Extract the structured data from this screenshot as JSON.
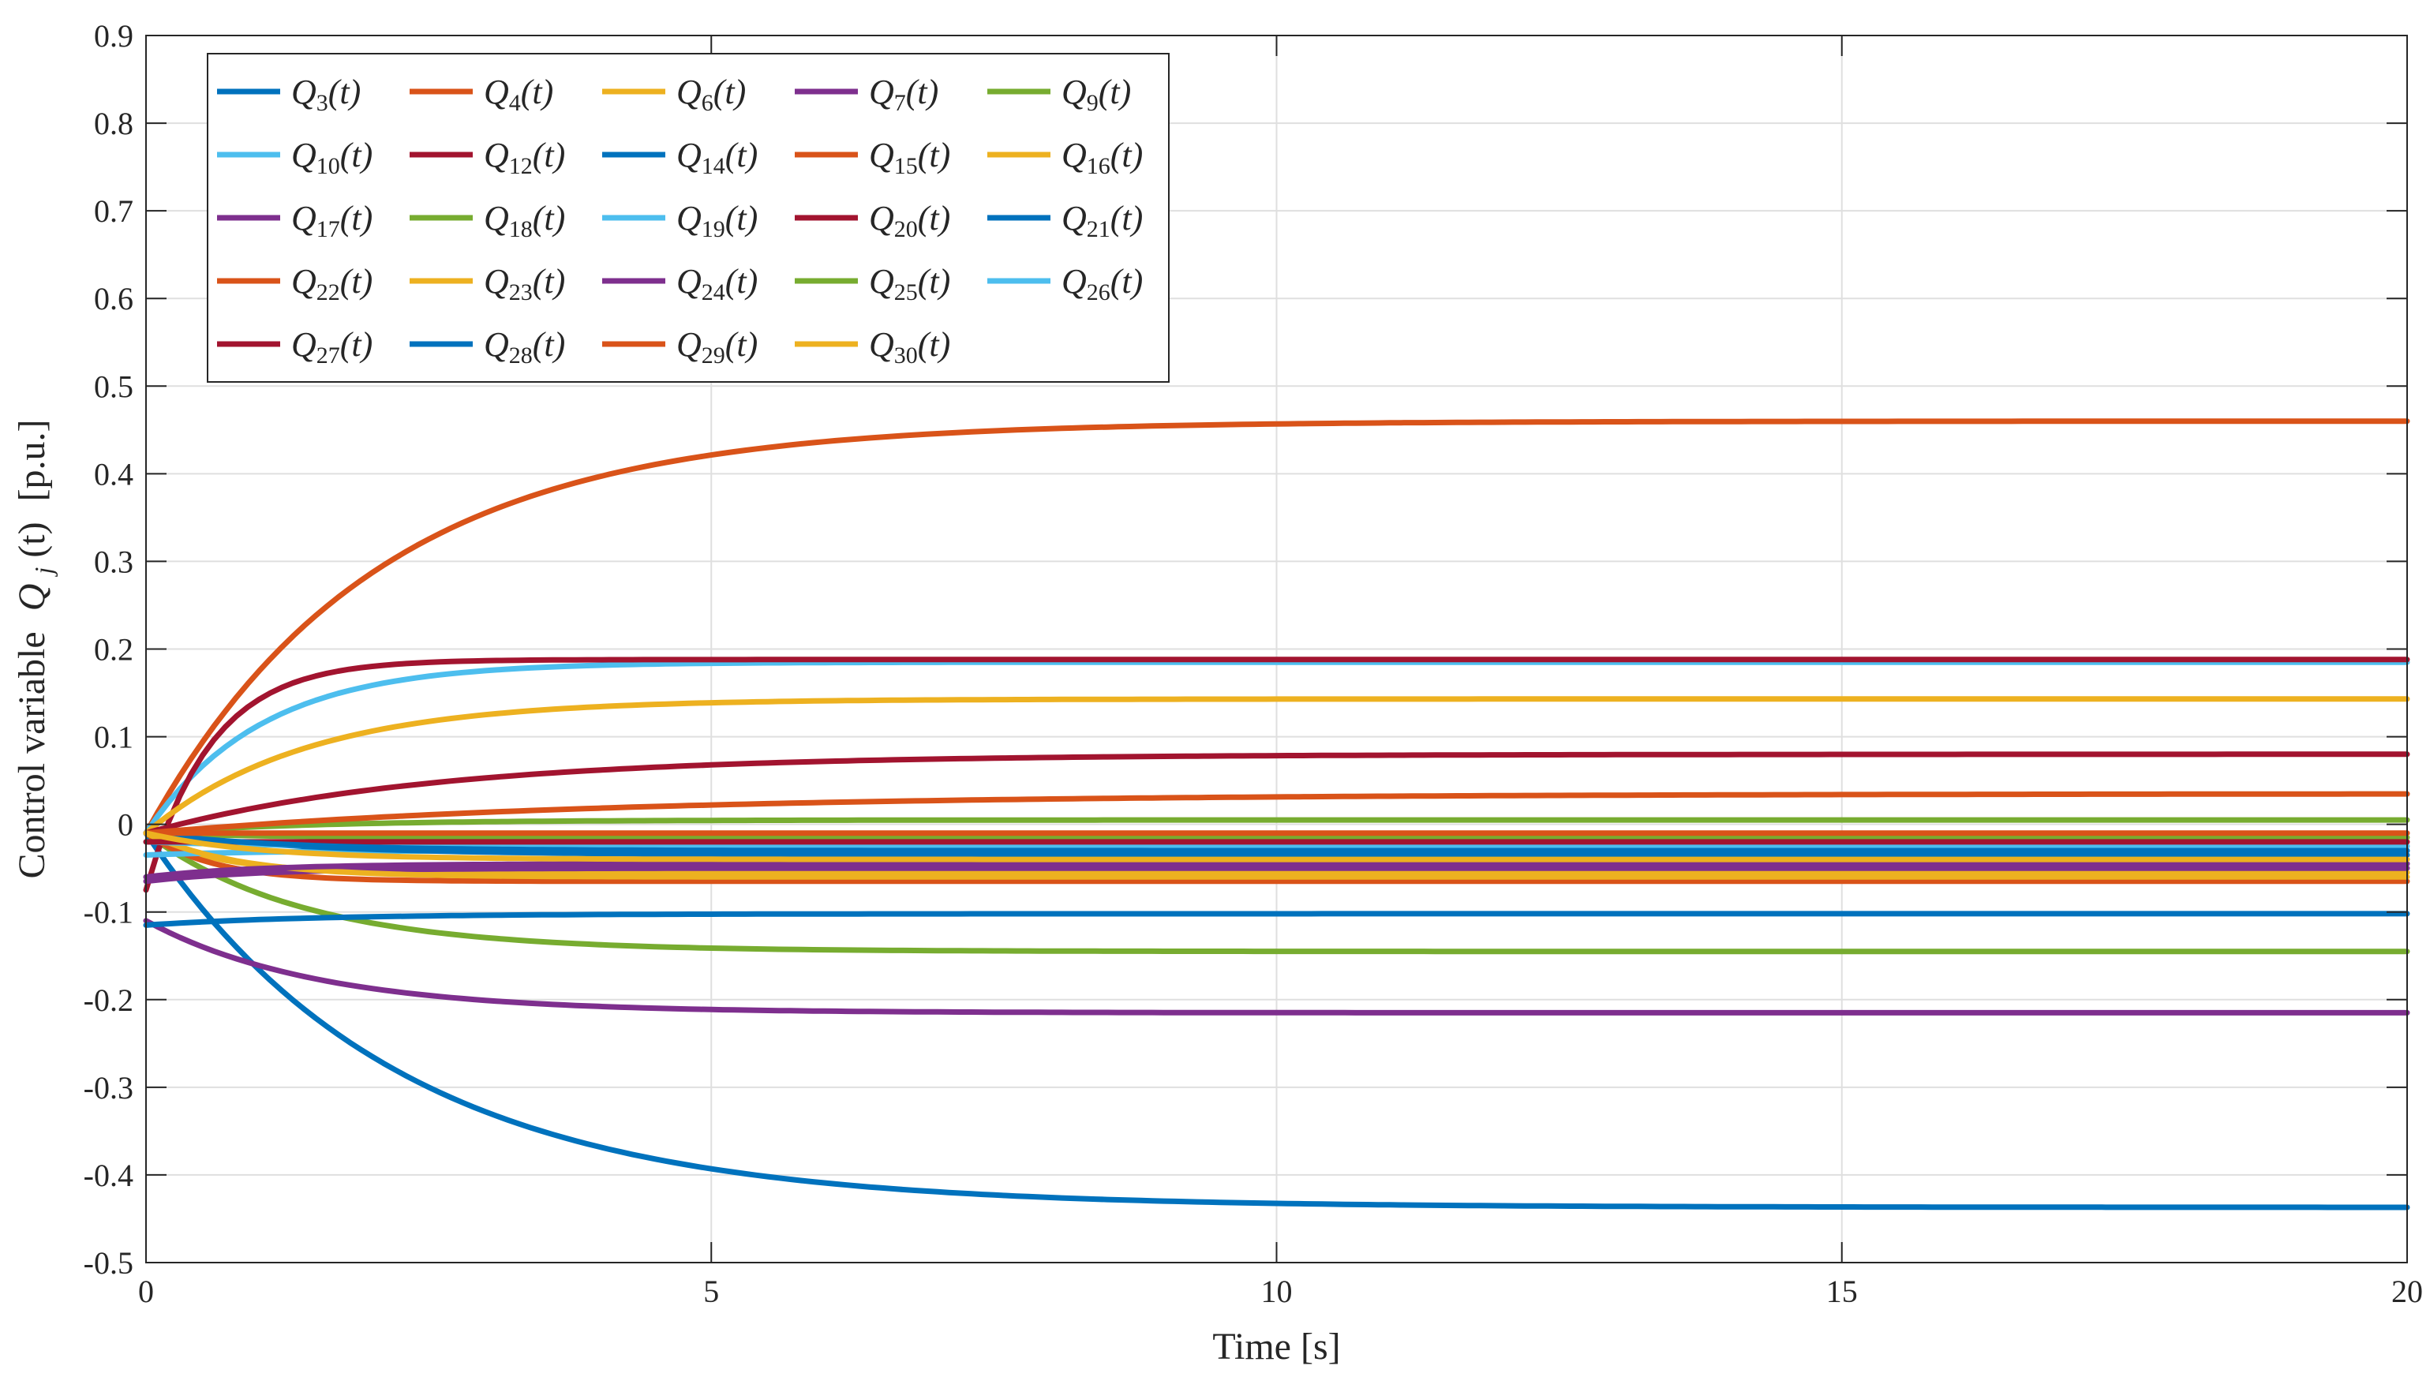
{
  "chart_data": {
    "type": "line",
    "title": "",
    "xlabel": "Time [s]",
    "ylabel_prefix": "Control variable",
    "ylabel_math_symbol": "Q",
    "ylabel_math_subscript": "j",
    "ylabel_math_arg": "(t)",
    "ylabel_unit": "[p.u.]",
    "xlim": [
      0,
      20
    ],
    "ylim": [
      -0.5,
      0.9
    ],
    "xticks": [
      0,
      5,
      10,
      15,
      20
    ],
    "yticks": [
      -0.5,
      -0.4,
      -0.3,
      -0.2,
      -0.1,
      0,
      0.1,
      0.2,
      0.3,
      0.4,
      0.5,
      0.6,
      0.7,
      0.8,
      0.9
    ],
    "xtick_labels": [
      "0",
      "5",
      "10",
      "15",
      "20"
    ],
    "ytick_labels": [
      "-0.5",
      "-0.4",
      "-0.3",
      "-0.2",
      "-0.1",
      "0",
      "0.1",
      "0.2",
      "0.3",
      "0.4",
      "0.5",
      "0.6",
      "0.7",
      "0.8",
      "0.9"
    ],
    "grid": true,
    "legend_position": "top-left",
    "legend_columns": 5,
    "series": [
      {
        "name": "Q_3(t)",
        "symbol": "Q",
        "subscript": "3",
        "arg": "(t)",
        "color": "#0072BD",
        "y0": -0.01,
        "yf": -0.437,
        "tau": 2.2
      },
      {
        "name": "Q_4(t)",
        "symbol": "Q",
        "subscript": "4",
        "arg": "(t)",
        "color": "#D95319",
        "y0": -0.01,
        "yf": 0.46,
        "tau": 2.0
      },
      {
        "name": "Q_6(t)",
        "symbol": "Q",
        "subscript": "6",
        "arg": "(t)",
        "color": "#EDB120",
        "y0": -0.01,
        "yf": -0.055,
        "tau": 0.6
      },
      {
        "name": "Q_7(t)",
        "symbol": "Q",
        "subscript": "7",
        "arg": "(t)",
        "color": "#7E2F8E",
        "y0": -0.11,
        "yf": -0.215,
        "tau": 1.5
      },
      {
        "name": "Q_9(t)",
        "symbol": "Q",
        "subscript": "9",
        "arg": "(t)",
        "color": "#77AC30",
        "y0": -0.01,
        "yf": -0.145,
        "tau": 1.4
      },
      {
        "name": "Q_10(t)",
        "symbol": "Q",
        "subscript": "10",
        "arg": "(t)",
        "color": "#4DBEEE",
        "y0": -0.01,
        "yf": 0.185,
        "tau": 1.0
      },
      {
        "name": "Q_12(t)",
        "symbol": "Q",
        "subscript": "12",
        "arg": "(t)",
        "color": "#A2142F",
        "y0": -0.075,
        "yf": 0.188,
        "tau": 0.6,
        "overshoot": 0.005
      },
      {
        "name": "Q_14(t)",
        "symbol": "Q",
        "subscript": "14",
        "arg": "(t)",
        "color": "#0072BD",
        "y0": -0.115,
        "yf": -0.102,
        "tau": 1.5
      },
      {
        "name": "Q_15(t)",
        "symbol": "Q",
        "subscript": "15",
        "arg": "(t)",
        "color": "#D95319",
        "y0": -0.01,
        "yf": -0.065,
        "tau": 0.6
      },
      {
        "name": "Q_16(t)",
        "symbol": "Q",
        "subscript": "16",
        "arg": "(t)",
        "color": "#EDB120",
        "y0": -0.01,
        "yf": 0.143,
        "tau": 1.4
      },
      {
        "name": "Q_17(t)",
        "symbol": "Q",
        "subscript": "17",
        "arg": "(t)",
        "color": "#7E2F8E",
        "y0": -0.065,
        "yf": -0.05,
        "tau": 1.0
      },
      {
        "name": "Q_18(t)",
        "symbol": "Q",
        "subscript": "18",
        "arg": "(t)",
        "color": "#77AC30",
        "y0": -0.01,
        "yf": 0.005,
        "tau": 1.5
      },
      {
        "name": "Q_19(t)",
        "symbol": "Q",
        "subscript": "19",
        "arg": "(t)",
        "color": "#4DBEEE",
        "y0": -0.035,
        "yf": -0.03,
        "tau": 1.0
      },
      {
        "name": "Q_20(t)",
        "symbol": "Q",
        "subscript": "20",
        "arg": "(t)",
        "color": "#A2142F",
        "y0": -0.01,
        "yf": 0.08,
        "tau": 2.5
      },
      {
        "name": "Q_21(t)",
        "symbol": "Q",
        "subscript": "21",
        "arg": "(t)",
        "color": "#0072BD",
        "y0": -0.01,
        "yf": -0.035,
        "tau": 1.5
      },
      {
        "name": "Q_22(t)",
        "symbol": "Q",
        "subscript": "22",
        "arg": "(t)",
        "color": "#D95319",
        "y0": -0.01,
        "yf": 0.035,
        "tau": 4.0
      },
      {
        "name": "Q_23(t)",
        "symbol": "Q",
        "subscript": "23",
        "arg": "(t)",
        "color": "#EDB120",
        "y0": -0.01,
        "yf": -0.06,
        "tau": 0.8
      },
      {
        "name": "Q_24(t)",
        "symbol": "Q",
        "subscript": "24",
        "arg": "(t)",
        "color": "#7E2F8E",
        "y0": -0.06,
        "yf": -0.045,
        "tau": 1.0
      },
      {
        "name": "Q_25(t)",
        "symbol": "Q",
        "subscript": "25",
        "arg": "(t)",
        "color": "#77AC30",
        "y0": -0.01,
        "yf": -0.015,
        "tau": 1.0
      },
      {
        "name": "Q_26(t)",
        "symbol": "Q",
        "subscript": "26",
        "arg": "(t)",
        "color": "#4DBEEE",
        "y0": -0.02,
        "yf": -0.025,
        "tau": 1.0
      },
      {
        "name": "Q_27(t)",
        "symbol": "Q",
        "subscript": "27",
        "arg": "(t)",
        "color": "#A2142F",
        "y0": -0.02,
        "yf": -0.02,
        "tau": 1.0
      },
      {
        "name": "Q_28(t)",
        "symbol": "Q",
        "subscript": "28",
        "arg": "(t)",
        "color": "#0072BD",
        "y0": -0.01,
        "yf": -0.03,
        "tau": 1.2
      },
      {
        "name": "Q_29(t)",
        "symbol": "Q",
        "subscript": "29",
        "arg": "(t)",
        "color": "#D95319",
        "y0": -0.01,
        "yf": -0.01,
        "tau": 1.0
      },
      {
        "name": "Q_30(t)",
        "symbol": "Q",
        "subscript": "30",
        "arg": "(t)",
        "color": "#EDB120",
        "y0": -0.01,
        "yf": -0.04,
        "tau": 1.0
      }
    ]
  }
}
